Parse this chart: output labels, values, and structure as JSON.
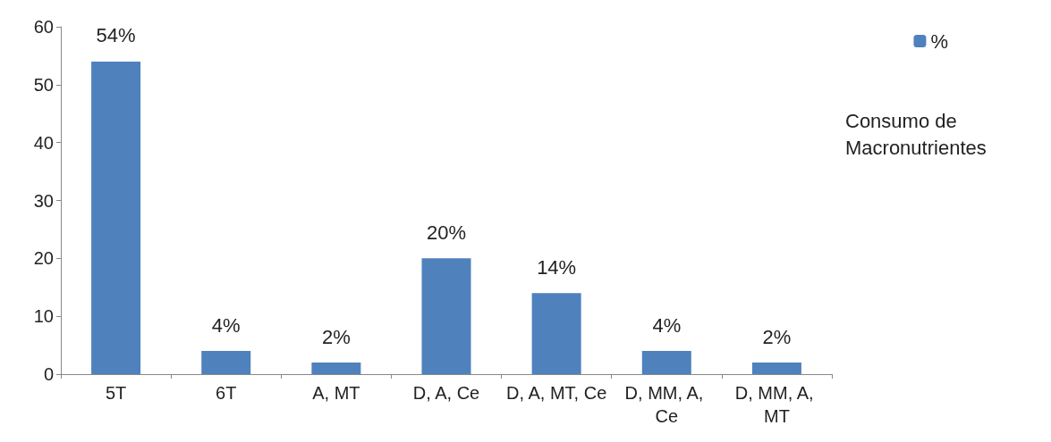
{
  "chart_data": {
    "type": "bar",
    "categories": [
      "5T",
      "6T",
      "A, MT",
      "D, A, Ce",
      "D, A, MT, Ce",
      "D, MM, A, Ce",
      "D, MM, A, MT"
    ],
    "series": [
      {
        "name": "%",
        "color": "#4f81bd",
        "values": [
          54,
          4,
          2,
          20,
          14,
          4,
          2
        ],
        "value_labels": [
          "54%",
          "4%",
          "2%",
          "20%",
          "14%",
          "4%",
          "2%"
        ]
      }
    ],
    "ylim": [
      0,
      60
    ],
    "yticks": [
      0,
      10,
      20,
      30,
      40,
      50,
      60
    ],
    "grid": false,
    "legend": "top right",
    "annotations": [
      "Consumo de Macronutrientes"
    ]
  }
}
